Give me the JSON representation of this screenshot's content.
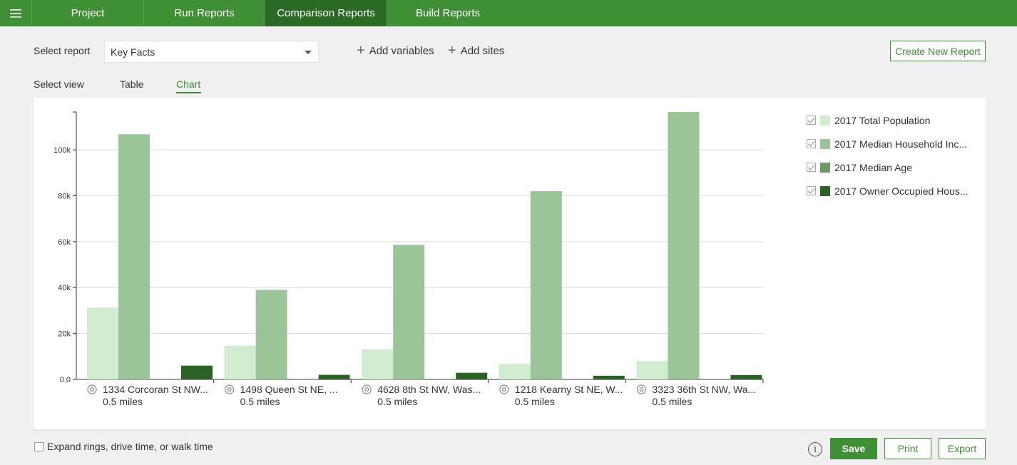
{
  "nav": {
    "menu_icon": "hamburger-icon",
    "tabs": [
      {
        "label": "Project"
      },
      {
        "label": "Run Reports"
      },
      {
        "label": "Comparison Reports",
        "active": true
      },
      {
        "label": "Build Reports"
      }
    ]
  },
  "controls": {
    "select_report_label": "Select report",
    "report_value": "Key Facts",
    "add_variables": "Add variables",
    "add_sites": "Add sites",
    "create_new_report": "Create New Report"
  },
  "view": {
    "label": "Select view",
    "tabs": [
      {
        "label": "Table"
      },
      {
        "label": "Chart",
        "active": true
      }
    ]
  },
  "legend": [
    {
      "label": "2017 Total Population",
      "color": "#d2ecd0",
      "checked": true
    },
    {
      "label": "2017 Median Household Inc...",
      "color": "#9bc499",
      "checked": true
    },
    {
      "label": "2017 Median Age",
      "color": "#6b9a67",
      "checked": true
    },
    {
      "label": "2017 Owner Occupied Hous...",
      "color": "#2d6227",
      "checked": true
    }
  ],
  "chart_data": {
    "type": "bar",
    "categories": [
      {
        "site": "1334 Corcoran St NW...",
        "radius": "0.5 miles"
      },
      {
        "site": "1498 Queen St NE, ...",
        "radius": "0.5 miles"
      },
      {
        "site": "4628 8th St NW, Was...",
        "radius": "0.5 miles"
      },
      {
        "site": "1218 Kearny St NE, W...",
        "radius": "0.5 miles"
      },
      {
        "site": "3323 36th St NW, Wa...",
        "radius": "0.5 miles"
      }
    ],
    "series": [
      {
        "name": "2017 Total Population",
        "values": [
          31300,
          14700,
          13100,
          6800,
          8000
        ]
      },
      {
        "name": "2017 Median Household Inc...",
        "values": [
          106800,
          39000,
          58600,
          82000,
          116500
        ]
      },
      {
        "name": "2017 Median Age",
        "values": [
          34,
          35,
          36,
          37,
          38
        ]
      },
      {
        "name": "2017 Owner Occupied Hous...",
        "values": [
          6000,
          2000,
          2900,
          1600,
          1900
        ]
      }
    ],
    "yticks": [
      "0.0",
      "20k",
      "40k",
      "60k",
      "80k",
      "100k"
    ],
    "ytick_values": [
      0,
      20000,
      40000,
      60000,
      80000,
      100000
    ],
    "ylim": [
      0,
      116500
    ],
    "grid": true,
    "legend_position": "right"
  },
  "footer": {
    "expand_label": "Expand rings, drive time, or walk time",
    "info_glyph": "i",
    "save": "Save",
    "print": "Print",
    "export": "Export"
  }
}
